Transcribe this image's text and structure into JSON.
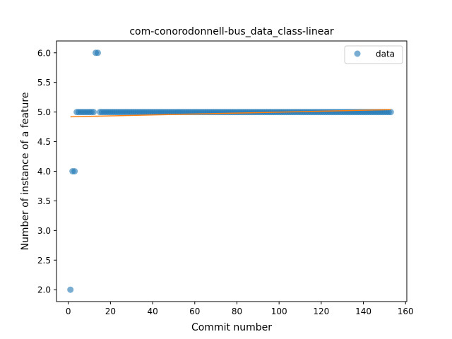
{
  "chart_data": {
    "type": "scatter",
    "title": "com-conorodonnell-bus_data_class-linear",
    "xlabel": "Commit number",
    "ylabel": "Number of instance of a feature",
    "xlim": [
      -5.6,
      160.6
    ],
    "ylim": [
      1.8,
      6.2
    ],
    "xticks": [
      0,
      20,
      40,
      60,
      80,
      100,
      120,
      140,
      160
    ],
    "xtick_labels": [
      "0",
      "20",
      "40",
      "60",
      "80",
      "100",
      "120",
      "140",
      "160"
    ],
    "yticks": [
      2.0,
      2.5,
      3.0,
      3.5,
      4.0,
      4.5,
      5.0,
      5.5,
      6.0
    ],
    "ytick_labels": [
      "2.0",
      "2.5",
      "3.0",
      "3.5",
      "4.0",
      "4.5",
      "5.0",
      "5.5",
      "6.0"
    ],
    "grid": false,
    "legend": {
      "placement": "top-right",
      "entries": [
        "data"
      ]
    },
    "colors": {
      "data": "#1f77b4",
      "fit": "#ff7f0e"
    },
    "series": [
      {
        "name": "data",
        "kind": "points",
        "points": [
          {
            "x": 1,
            "y": 2.0
          },
          {
            "x": 2,
            "y": 4.0
          },
          {
            "x": 3,
            "y": 4.0
          },
          {
            "x": 13,
            "y": 6.0
          },
          {
            "x": 14,
            "y": 6.0
          }
        ],
        "constant_run": {
          "y": 5.0,
          "x_from": 4,
          "x_to": 153,
          "exclude": [
            13,
            14
          ]
        }
      },
      {
        "kind": "fit-line",
        "points": [
          {
            "x": 1,
            "y": 4.92
          },
          {
            "x": 153,
            "y": 5.04
          }
        ]
      }
    ]
  }
}
